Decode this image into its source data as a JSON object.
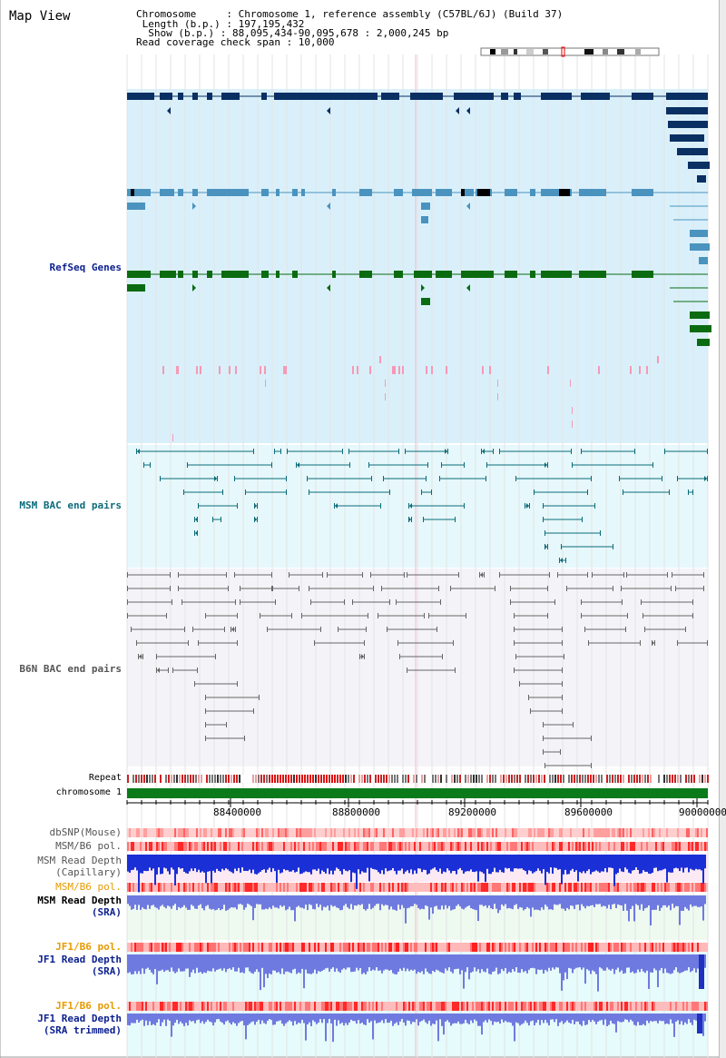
{
  "header": {
    "view_title": "Map View",
    "info_lines": [
      "Chromosome     : Chromosome 1, reference assembly (C57BL/6J) (Build 37)",
      " Length (b.p.) : 197,195,432",
      "  Show (b.p.) : 88,095,434-90,095,678 : 2,000,245 bp",
      "Read coverage check span : 10,000"
    ]
  },
  "tracks": {
    "refseq": {
      "label": "RefSeq Genes",
      "color": "#0b1f8f"
    },
    "msm_bac": {
      "label": "MSM BAC end pairs",
      "color": "#0b6b7a"
    },
    "b6n_bac": {
      "label": "B6N BAC end pairs",
      "color": "#555555"
    },
    "repeat": {
      "label": "Repeat"
    },
    "chromosome": {
      "label": "chromosome 1"
    },
    "dbsnp": {
      "label": "dbSNP(Mouse)"
    },
    "msm_b6_pol_1": {
      "label": "MSM/B6 pol."
    },
    "msm_depth_cap": {
      "label_1": "MSM Read Depth",
      "label_2": "(Capillary)"
    },
    "msm_b6_pol_2": {
      "label": "MSM/B6 pol.",
      "color": "#e89a00"
    },
    "msm_depth_sra": {
      "label_1": "MSM Read Depth",
      "label_2": "(SRA)",
      "color": "#0b1f8f"
    },
    "jf1_b6_pol_1": {
      "label": "JF1/B6 pol.",
      "color": "#e89a00"
    },
    "jf1_depth_sra": {
      "label_1": "JF1 Read Depth",
      "label_2": "(SRA)",
      "color": "#0b1f8f"
    },
    "jf1_b6_pol_2": {
      "label": "JF1/B6 pol.",
      "color": "#e89a00"
    },
    "jf1_depth_trim": {
      "label_1": "JF1 Read Depth",
      "label_2": "(SRA trimmed)",
      "color": "#0b1f8f"
    }
  },
  "ruler": {
    "ticks": [
      "88400000",
      "88800000",
      "89200000",
      "89600000",
      "90000000"
    ]
  },
  "colors": {
    "refseq_bg": "#d9f0fb",
    "msm_bg": "#e6f8fb",
    "b6n_bg": "#f4f4f8",
    "dark_navy": "#0a2f63",
    "light_blue": "#4a93bf",
    "green": "#0b6b10",
    "pink": "#f799b5"
  }
}
